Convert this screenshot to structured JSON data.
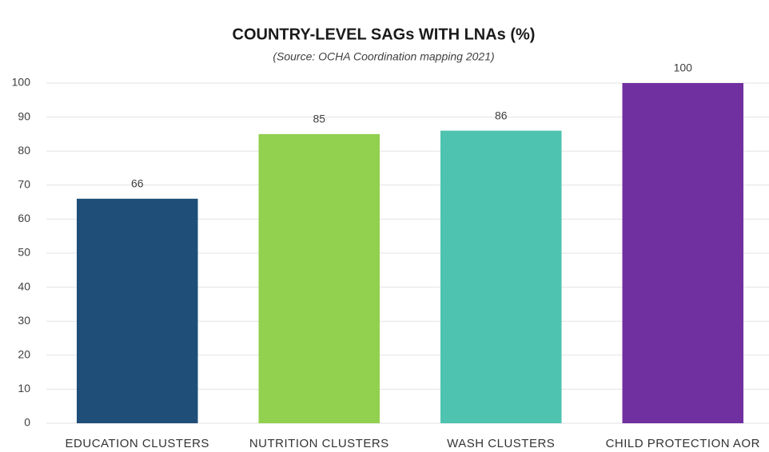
{
  "chart_data": {
    "type": "bar",
    "title": "COUNTRY-LEVEL SAGs WITH LNAs (%)",
    "subtitle": "(Source: OCHA Coordination mapping 2021)",
    "categories": [
      "EDUCATION CLUSTERS",
      "NUTRITION CLUSTERS",
      "WASH CLUSTERS",
      "CHILD PROTECTION AOR"
    ],
    "values": [
      66,
      85,
      86,
      100
    ],
    "colors": [
      "#1f4e79",
      "#92d050",
      "#4ec3af",
      "#7030a0"
    ],
    "ylim": [
      0,
      100
    ],
    "yticks": [
      0,
      10,
      20,
      30,
      40,
      50,
      60,
      70,
      80,
      90,
      100
    ],
    "grid": true
  }
}
